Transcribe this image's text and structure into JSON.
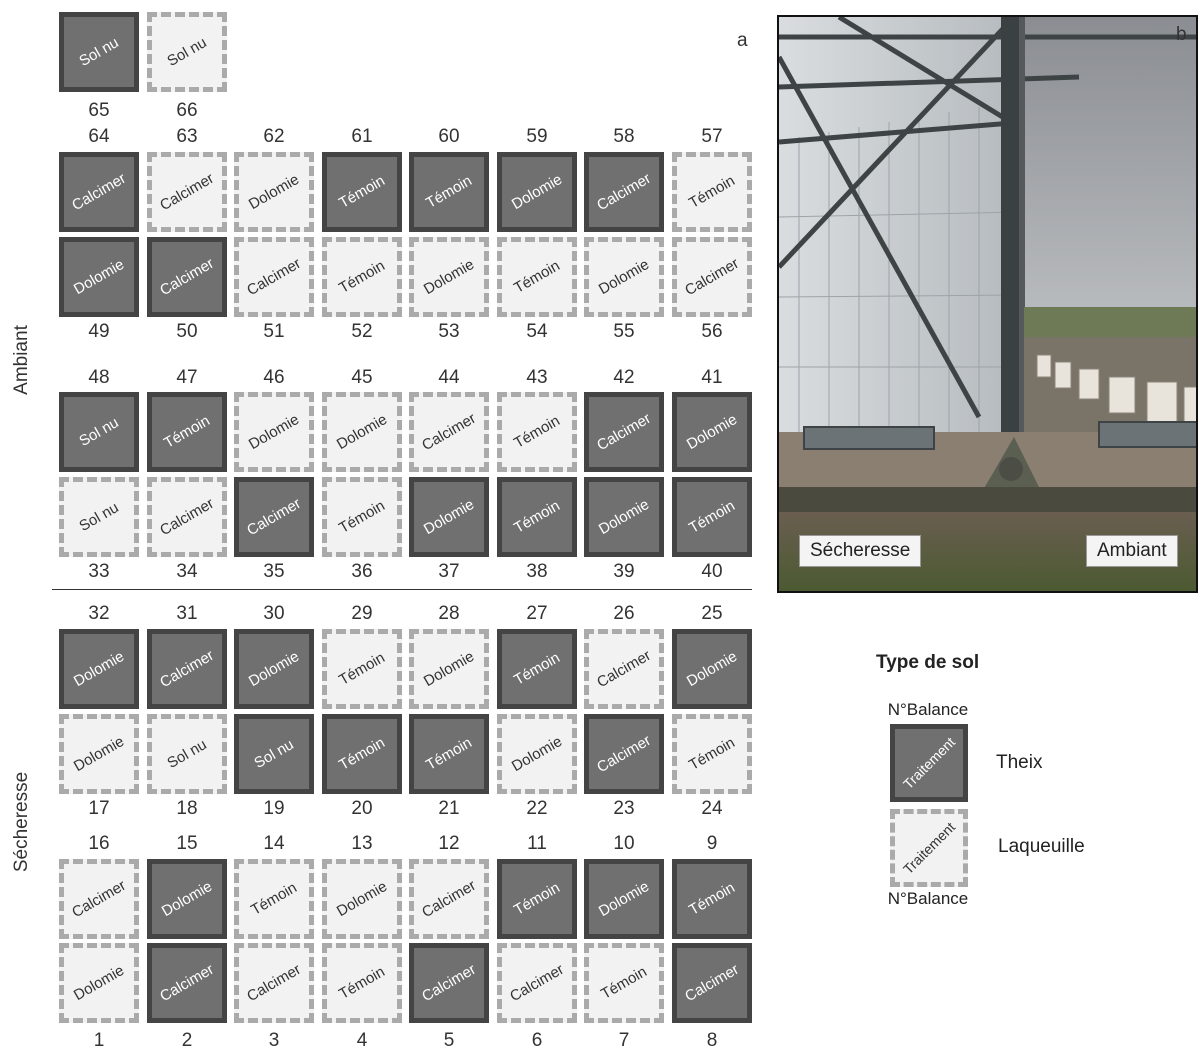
{
  "panel_letters": {
    "a": "a",
    "b": "b"
  },
  "side_labels": {
    "ambiant": "Ambiant",
    "secheresse": "Sécheresse"
  },
  "colors": {
    "theix_fill": "#707070",
    "theix_border": "#444444",
    "laqueuille_fill": "#f2f2f2",
    "laqueuille_border": "#aaaaaa"
  },
  "plots": {
    "65": {
      "soil": "theix",
      "label": "Sol nu"
    },
    "66": {
      "soil": "laqueuille",
      "label": "Sol nu"
    },
    "64": {
      "soil": "theix",
      "label": "Calcimer"
    },
    "63": {
      "soil": "laqueuille",
      "label": "Calcimer"
    },
    "62": {
      "soil": "laqueuille",
      "label": "Dolomie"
    },
    "61": {
      "soil": "theix",
      "label": "Témoin"
    },
    "60": {
      "soil": "theix",
      "label": "Témoin"
    },
    "59": {
      "soil": "theix",
      "label": "Dolomie"
    },
    "58": {
      "soil": "theix",
      "label": "Calcimer"
    },
    "57": {
      "soil": "laqueuille",
      "label": "Témoin"
    },
    "49": {
      "soil": "theix",
      "label": "Dolomie"
    },
    "50": {
      "soil": "theix",
      "label": "Calcimer"
    },
    "51": {
      "soil": "laqueuille",
      "label": "Calcimer"
    },
    "52": {
      "soil": "laqueuille",
      "label": "Témoin"
    },
    "53": {
      "soil": "laqueuille",
      "label": "Dolomie"
    },
    "54": {
      "soil": "laqueuille",
      "label": "Témoin"
    },
    "55": {
      "soil": "laqueuille",
      "label": "Dolomie"
    },
    "56": {
      "soil": "laqueuille",
      "label": "Calcimer"
    },
    "48": {
      "soil": "theix",
      "label": "Sol nu"
    },
    "47": {
      "soil": "theix",
      "label": "Témoin"
    },
    "46": {
      "soil": "laqueuille",
      "label": "Dolomie"
    },
    "45": {
      "soil": "laqueuille",
      "label": "Dolomie"
    },
    "44": {
      "soil": "laqueuille",
      "label": "Calcimer"
    },
    "43": {
      "soil": "laqueuille",
      "label": "Témoin"
    },
    "42": {
      "soil": "theix",
      "label": "Calcimer"
    },
    "41": {
      "soil": "theix",
      "label": "Dolomie"
    },
    "33": {
      "soil": "laqueuille",
      "label": "Sol nu"
    },
    "34": {
      "soil": "laqueuille",
      "label": "Calcimer"
    },
    "35": {
      "soil": "theix",
      "label": "Calcimer"
    },
    "36": {
      "soil": "laqueuille",
      "label": "Témoin"
    },
    "37": {
      "soil": "theix",
      "label": "Dolomie"
    },
    "38": {
      "soil": "theix",
      "label": "Témoin"
    },
    "39": {
      "soil": "theix",
      "label": "Dolomie"
    },
    "40": {
      "soil": "theix",
      "label": "Témoin"
    },
    "32": {
      "soil": "theix",
      "label": "Dolomie"
    },
    "31": {
      "soil": "theix",
      "label": "Calcimer"
    },
    "30": {
      "soil": "theix",
      "label": "Dolomie"
    },
    "29": {
      "soil": "laqueuille",
      "label": "Témoin"
    },
    "28": {
      "soil": "laqueuille",
      "label": "Dolomie"
    },
    "27": {
      "soil": "theix",
      "label": "Témoin"
    },
    "26": {
      "soil": "laqueuille",
      "label": "Calcimer"
    },
    "25": {
      "soil": "theix",
      "label": "Dolomie"
    },
    "17": {
      "soil": "laqueuille",
      "label": "Dolomie"
    },
    "18": {
      "soil": "laqueuille",
      "label": "Sol nu"
    },
    "19": {
      "soil": "theix",
      "label": "Sol nu"
    },
    "20": {
      "soil": "theix",
      "label": "Témoin"
    },
    "21": {
      "soil": "theix",
      "label": "Témoin"
    },
    "22": {
      "soil": "laqueuille",
      "label": "Dolomie"
    },
    "23": {
      "soil": "theix",
      "label": "Calcimer"
    },
    "24": {
      "soil": "laqueuille",
      "label": "Témoin"
    },
    "16": {
      "soil": "laqueuille",
      "label": "Calcimer"
    },
    "15": {
      "soil": "theix",
      "label": "Dolomie"
    },
    "14": {
      "soil": "laqueuille",
      "label": "Témoin"
    },
    "13": {
      "soil": "laqueuille",
      "label": "Dolomie"
    },
    "12": {
      "soil": "laqueuille",
      "label": "Calcimer"
    },
    "11": {
      "soil": "theix",
      "label": "Témoin"
    },
    "10": {
      "soil": "theix",
      "label": "Dolomie"
    },
    "9": {
      "soil": "theix",
      "label": "Témoin"
    },
    "1": {
      "soil": "laqueuille",
      "label": "Dolomie"
    },
    "2": {
      "soil": "theix",
      "label": "Calcimer"
    },
    "3": {
      "soil": "laqueuille",
      "label": "Calcimer"
    },
    "4": {
      "soil": "laqueuille",
      "label": "Témoin"
    },
    "5": {
      "soil": "theix",
      "label": "Calcimer"
    },
    "6": {
      "soil": "laqueuille",
      "label": "Calcimer"
    },
    "7": {
      "soil": "laqueuille",
      "label": "Témoin"
    },
    "8": {
      "soil": "theix",
      "label": "Calcimer"
    }
  },
  "photo": {
    "label_left": "Sécheresse",
    "label_right": "Ambiant"
  },
  "legend": {
    "title": "Type de sol",
    "num_label": "N°Balance",
    "box_text": "Traitement",
    "theix": "Theix",
    "laqueuille": "Laqueuille"
  }
}
